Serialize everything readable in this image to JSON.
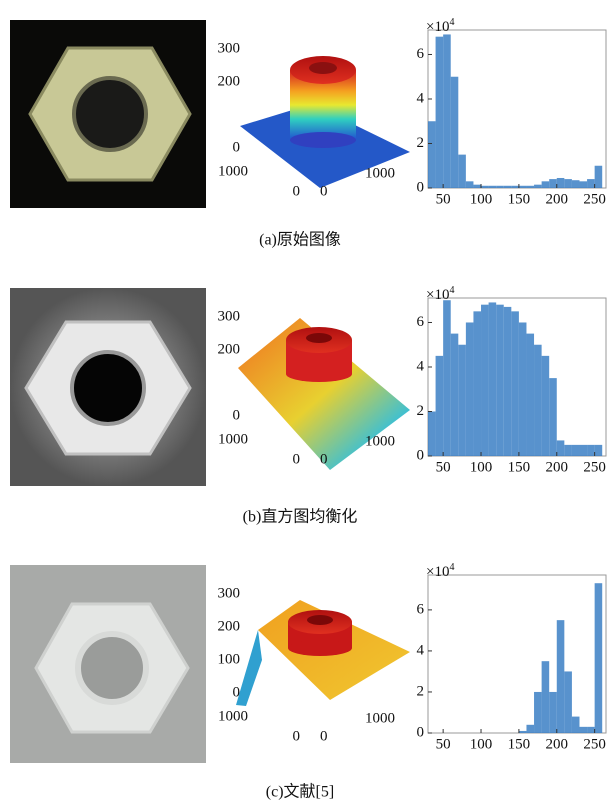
{
  "panels": [
    {
      "caption": "(a)原始图像",
      "surface": {
        "xlim": [
          0,
          1000
        ],
        "zticks": [
          0,
          200,
          300
        ],
        "xticks": [
          0,
          1000
        ],
        "yticks": [
          0,
          1000
        ]
      },
      "histogram": {
        "type": "bar",
        "scale": "×10",
        "exponent": "4",
        "xlim": [
          30,
          265
        ],
        "ylim": [
          0,
          7.1
        ],
        "xticks": [
          50,
          100,
          150,
          200,
          250
        ],
        "yticks": [
          0,
          2,
          4,
          6
        ],
        "color": "#3b7fc4",
        "bins": [
          30,
          40,
          50,
          60,
          70,
          80,
          90,
          100,
          110,
          120,
          130,
          140,
          150,
          160,
          170,
          180,
          190,
          200,
          210,
          220,
          230,
          240,
          250,
          260
        ],
        "counts": [
          3,
          6.8,
          6.9,
          5,
          1.5,
          0.3,
          0.15,
          0.1,
          0.1,
          0.1,
          0.1,
          0.1,
          0.1,
          0.1,
          0.15,
          0.3,
          0.4,
          0.45,
          0.4,
          0.35,
          0.3,
          0.4,
          1
        ]
      }
    },
    {
      "caption": "(b)直方图均衡化",
      "surface": {
        "xlim": [
          0,
          1000
        ],
        "zticks": [
          0,
          200,
          300
        ],
        "xticks": [
          0,
          1000
        ],
        "yticks": [
          0,
          1000
        ]
      },
      "histogram": {
        "type": "bar",
        "scale": "×10",
        "exponent": "4",
        "xlim": [
          30,
          265
        ],
        "ylim": [
          0,
          7.1
        ],
        "xticks": [
          50,
          100,
          150,
          200,
          250
        ],
        "yticks": [
          0,
          2,
          4,
          6
        ],
        "color": "#3b7fc4",
        "bins": [
          30,
          40,
          50,
          60,
          70,
          80,
          90,
          100,
          110,
          120,
          130,
          140,
          150,
          160,
          170,
          180,
          190,
          200,
          210,
          220,
          230,
          240,
          250,
          260
        ],
        "counts": [
          2,
          4.5,
          7,
          5.5,
          5,
          6,
          6.5,
          6.8,
          6.9,
          6.8,
          6.7,
          6.5,
          6,
          5.5,
          5,
          4.5,
          3.5,
          0.7,
          0.5,
          0.5,
          0.5,
          0.5,
          0.5
        ]
      }
    },
    {
      "caption": "(c)文献[5]",
      "surface": {
        "xlim": [
          0,
          1000
        ],
        "zticks": [
          0,
          100,
          200,
          300
        ],
        "xticks": [
          0,
          1000
        ],
        "yticks": [
          0,
          1000
        ]
      },
      "histogram": {
        "type": "bar",
        "scale": "×10",
        "exponent": "4",
        "xlim": [
          30,
          265
        ],
        "ylim": [
          0,
          7.7
        ],
        "xticks": [
          50,
          100,
          150,
          200,
          250
        ],
        "yticks": [
          0,
          2,
          4,
          6
        ],
        "color": "#3b7fc4",
        "bins": [
          30,
          40,
          50,
          60,
          70,
          80,
          90,
          100,
          110,
          120,
          130,
          140,
          150,
          160,
          170,
          180,
          190,
          200,
          210,
          220,
          230,
          240,
          250,
          260
        ],
        "counts": [
          0,
          0,
          0,
          0,
          0,
          0,
          0,
          0,
          0,
          0,
          0,
          0,
          0.1,
          0.4,
          2,
          3.5,
          2,
          5.5,
          3,
          0.8,
          0.3,
          0.3,
          7.3
        ]
      }
    }
  ]
}
